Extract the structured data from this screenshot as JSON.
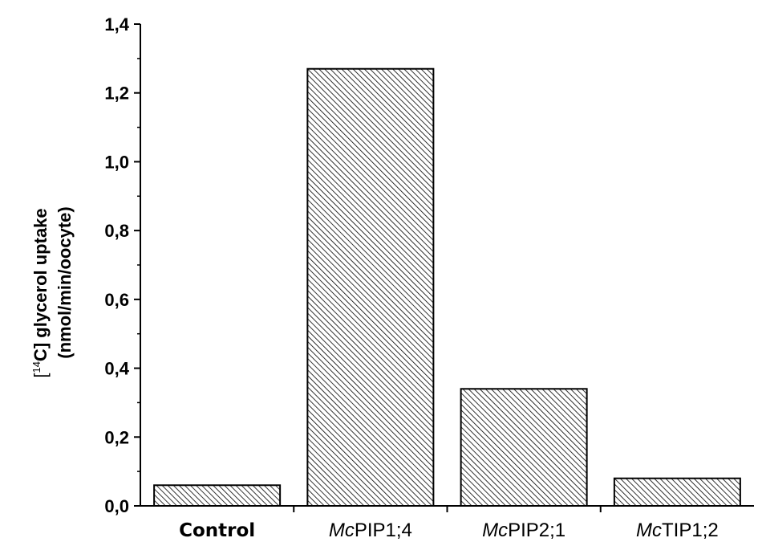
{
  "chart_data": {
    "type": "bar",
    "categories": [
      {
        "prefix": "",
        "rest": "Control",
        "style": "bold"
      },
      {
        "prefix": "Mc",
        "rest": "PIP1;4",
        "style": "italic-prefix"
      },
      {
        "prefix": "Mc",
        "rest": "PIP2;1",
        "style": "italic-prefix"
      },
      {
        "prefix": "Mc",
        "rest": "TIP1;2",
        "style": "italic-prefix"
      }
    ],
    "values": [
      0.06,
      1.27,
      0.34,
      0.08
    ],
    "ylabel_line1": {
      "pre": "[",
      "sup": "14",
      "post": "C]  glycerol uptake"
    },
    "ylabel_line2": "(nmol/min/oocyte)",
    "ylim": [
      0,
      1.4
    ],
    "yticks": [
      "0,0",
      "0,2",
      "0,4",
      "0,6",
      "0,8",
      "1,0",
      "1,2",
      "1,4"
    ],
    "bar_fill": "hatched",
    "bar_color": "#000000",
    "grid": false
  }
}
